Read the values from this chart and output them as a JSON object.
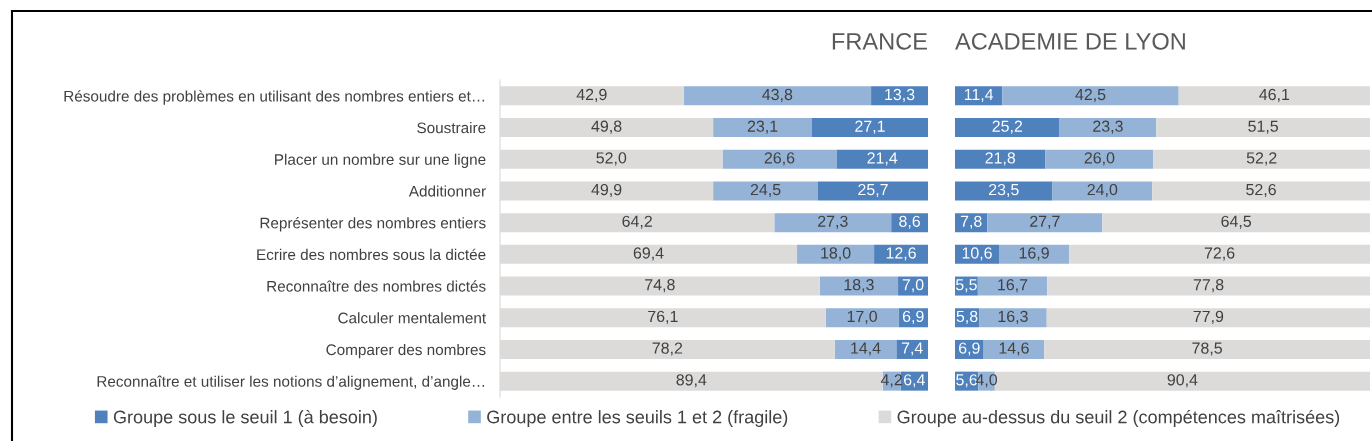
{
  "chart_data": [
    {
      "type": "bar",
      "orientation": "horizontal",
      "stacked": true,
      "title": "FRANCE",
      "categories": [
        "Résoudre des problèmes en utilisant des nombres entiers et…",
        "Soustraire",
        "Placer un nombre sur une ligne",
        "Additionner",
        "Représenter des nombres entiers",
        "Ecrire des nombres sous la dictée",
        "Reconnaître des nombres dictés",
        "Calculer mentalement",
        "Comparer des nombres",
        "Reconnaître et utiliser les notions d’alignement, d’angle…"
      ],
      "series": [
        {
          "name": "Groupe sous le seuil 1 (à besoin)",
          "color": "#4f81bd",
          "values": [
            13.3,
            27.1,
            21.4,
            25.7,
            8.6,
            12.6,
            7.0,
            6.9,
            7.4,
            6.4
          ],
          "value_labels": [
            "13,3",
            "27,1",
            "21,4",
            "25,7",
            "8,6",
            "12,6",
            "7,0",
            "6,9",
            "7,4",
            "6,4"
          ]
        },
        {
          "name": "Groupe entre les seuils 1 et 2 (fragile)",
          "color": "#95b3d7",
          "values": [
            43.8,
            23.1,
            26.6,
            24.5,
            27.3,
            18.0,
            18.3,
            17.0,
            14.4,
            4.2
          ],
          "value_labels": [
            "43,8",
            "23,1",
            "26,6",
            "24,5",
            "27,3",
            "18,0",
            "18,3",
            "17,0",
            "14,4",
            "4,2"
          ]
        },
        {
          "name": "Groupe au-dessus du seuil 2 (compétences maîtrisées)",
          "color": "#dddbd9",
          "values": [
            42.9,
            49.8,
            52.0,
            49.9,
            64.2,
            69.4,
            74.8,
            76.1,
            78.2,
            89.4
          ],
          "value_labels": [
            "42,9",
            "49,8",
            "52,0",
            "49,9",
            "64,2",
            "69,4",
            "74,8",
            "76,1",
            "78,2",
            "89,4"
          ]
        }
      ],
      "xlim": [
        100,
        0
      ],
      "tick_labels": "y",
      "legend": "bottom"
    },
    {
      "type": "bar",
      "orientation": "horizontal",
      "stacked": true,
      "title": "ACADEMIE DE LYON",
      "categories": [
        null,
        null,
        null,
        null,
        null,
        null,
        null,
        null,
        null,
        null
      ],
      "series": [
        {
          "color": "#4f81bd",
          "values": [
            11.4,
            25.2,
            21.8,
            23.5,
            7.8,
            10.6,
            5.5,
            5.8,
            6.9,
            5.6
          ],
          "value_labels": [
            "11,4",
            "25,2",
            "21,8",
            "23,5",
            "7,8",
            "10,6",
            "5,5",
            "5,8",
            "6,9",
            "5,6"
          ]
        },
        {
          "color": "#95b3d7",
          "values": [
            42.5,
            23.3,
            26.0,
            24.0,
            27.7,
            16.9,
            16.7,
            16.3,
            14.6,
            4.0
          ],
          "value_labels": [
            "42,5",
            "23,3",
            "26,0",
            "24,0",
            "27,7",
            "16,9",
            "16,7",
            "16,3",
            "14,6",
            "4,0"
          ]
        },
        {
          "color": "#dddbd9",
          "values": [
            46.1,
            51.5,
            52.2,
            52.6,
            64.5,
            72.6,
            77.8,
            77.9,
            78.5,
            90.4
          ],
          "value_labels": [
            "46,1",
            "51,5",
            "52,2",
            "52,6",
            "64,5",
            "72,6",
            "77,8",
            "77,9",
            "78,5",
            "90,4"
          ]
        }
      ],
      "xlim": [
        0,
        100
      ],
      "tick_labels": false
    }
  ]
}
